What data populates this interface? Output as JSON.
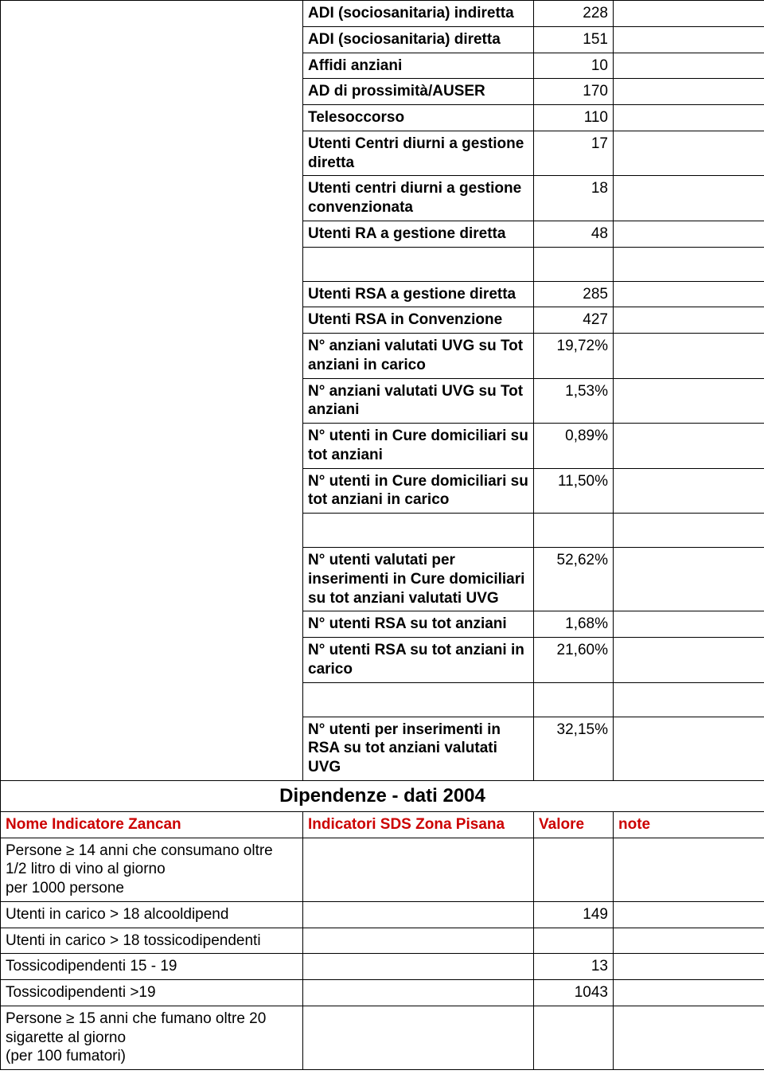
{
  "colors": {
    "text": "#000000",
    "accent": "#cc0000",
    "border": "#000000",
    "background": "#ffffff"
  },
  "fonts": {
    "family": "Arial, Helvetica, sans-serif",
    "cell_size_pt": 14,
    "section_title_size_pt": 18
  },
  "top_rows": [
    {
      "label": "ADI (sociosanitaria) indiretta",
      "value": "228"
    },
    {
      "label": "ADI (sociosanitaria) diretta",
      "value": "151"
    },
    {
      "label": "Affidi anziani",
      "value": "10"
    },
    {
      "label": "AD di prossimità/AUSER",
      "value": "170"
    },
    {
      "label": "Telesoccorso",
      "value": "110"
    },
    {
      "label": "Utenti Centri diurni a gestione diretta",
      "value": "17"
    },
    {
      "label": "Utenti centri diurni a gestione convenzionata",
      "value": "18"
    },
    {
      "label": "Utenti RA a gestione diretta",
      "value": "48"
    }
  ],
  "mid_rows": [
    {
      "label": "Utenti RSA a gestione diretta",
      "value": "285"
    },
    {
      "label": "Utenti RSA in Convenzione",
      "value": "427"
    },
    {
      "label": "N° anziani valutati UVG su Tot anziani in carico",
      "value": "19,72%"
    },
    {
      "label": "N° anziani valutati UVG su Tot anziani",
      "value": "1,53%"
    },
    {
      "label": "N° utenti in Cure domiciliari su tot anziani",
      "value": "0,89%"
    },
    {
      "label": "N° utenti in Cure domiciliari su tot anziani in carico",
      "value": "11,50%"
    }
  ],
  "bottom_rows": [
    {
      "label": "N° utenti valutati per inserimenti in Cure domiciliari su tot anziani valutati UVG",
      "value": "52,62%"
    },
    {
      "label": "N°  utenti RSA su tot anziani",
      "value": "1,68%"
    },
    {
      "label": "N°  utenti RSA su tot anziani in carico",
      "value": "21,60%"
    }
  ],
  "last_block": {
    "label": "N°  utenti per inserimenti in RSA su tot anziani  valutati UVG",
    "value": "32,15%"
  },
  "section": {
    "title": "Dipendenze - dati 2004",
    "header_left": "Nome Indicatore Zancan",
    "header_mid": "Indicatori SDS Zona Pisana",
    "header_val": "Valore",
    "header_note": "note"
  },
  "dep_rows": [
    {
      "left": "Persone ≥ 14 anni che consumano oltre 1/2 litro di vino al giorno\n per 1000 persone",
      "mid": "",
      "val": "",
      "note": ""
    },
    {
      "left": "Utenti in carico > 18 alcooldipend",
      "mid": "",
      "val": "149",
      "note": ""
    },
    {
      "left": "Utenti in carico > 18 tossicodipendenti",
      "mid": "",
      "val": "",
      "note": ""
    },
    {
      "left": "Tossicodipendenti 15 - 19",
      "mid": "",
      "val": "13",
      "note": ""
    },
    {
      "left": "Tossicodipendenti  >19",
      "mid": "",
      "val": "1043",
      "note": ""
    },
    {
      "left": "Persone ≥ 15 anni che fumano oltre 20 sigarette al giorno\n(per 100 fumatori)",
      "mid": "",
      "val": "",
      "note": ""
    }
  ]
}
